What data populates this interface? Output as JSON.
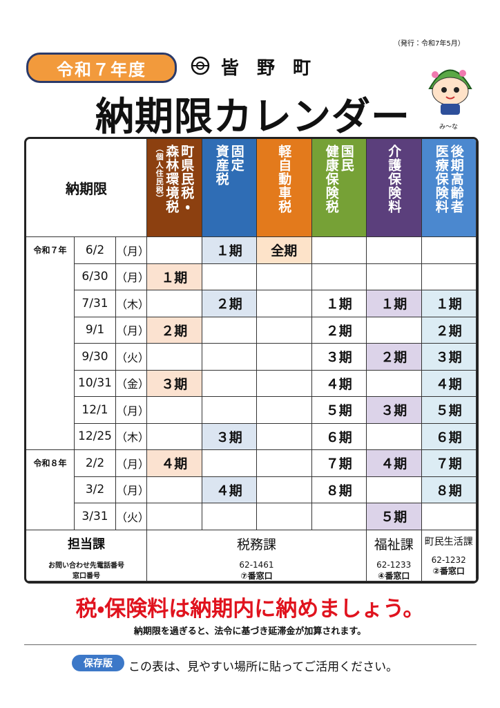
{
  "issued": "（発行：令和7年5月）",
  "badge": "令和７年度",
  "town": "皆　野　町",
  "title": "納期限カレンダー",
  "mascot_name": "み～な",
  "table": {
    "corner": "納期限",
    "columns": [
      {
        "lines": [
          "町県民税・",
          "森林環境税"
        ],
        "note": "（個人住民税）",
        "color": "#8c4010",
        "fill": "#fbe2d0"
      },
      {
        "lines": [
          "固定",
          "資産税"
        ],
        "color": "#2f6db5",
        "fill": "#dbe5f1"
      },
      {
        "lines": [
          "軽自動車税"
        ],
        "color": "#e37a1c",
        "fill": "#fde3c9"
      },
      {
        "lines": [
          "国民",
          "健康保険税"
        ],
        "color": "#76a136",
        "fill": "#ffffff"
      },
      {
        "lines": [
          "介護保険料"
        ],
        "color": "#5b3f7c",
        "fill": "#dcd3e9"
      },
      {
        "lines": [
          "後期高齢者",
          "医療保険料"
        ],
        "color": "#4b88cf",
        "fill": "#dcecf4"
      }
    ],
    "rows": [
      {
        "era": "令和７年",
        "date": "6/2",
        "day": "（月）",
        "cells": [
          null,
          "１期",
          "全期",
          null,
          null,
          null
        ]
      },
      {
        "date": "6/30",
        "day": "（月）",
        "cells": [
          "１期",
          null,
          null,
          null,
          null,
          null
        ]
      },
      {
        "date": "7/31",
        "day": "（木）",
        "cells": [
          null,
          "２期",
          null,
          "１期",
          "１期",
          "１期"
        ]
      },
      {
        "date": "9/1",
        "day": "（月）",
        "cells": [
          "２期",
          null,
          null,
          "２期",
          null,
          "２期"
        ]
      },
      {
        "date": "9/30",
        "day": "（火）",
        "cells": [
          null,
          null,
          null,
          "３期",
          "２期",
          "３期"
        ]
      },
      {
        "date": "10/31",
        "day": "（金）",
        "cells": [
          "３期",
          null,
          null,
          "４期",
          null,
          "４期"
        ]
      },
      {
        "date": "12/1",
        "day": "（月）",
        "cells": [
          null,
          null,
          null,
          "５期",
          "３期",
          "５期"
        ]
      },
      {
        "date": "12/25",
        "day": "（木）",
        "cells": [
          null,
          "３期",
          null,
          "６期",
          null,
          "６期"
        ]
      },
      {
        "era": "令和８年",
        "date": "2/2",
        "day": "（月）",
        "cells": [
          "４期",
          null,
          null,
          "７期",
          "４期",
          "７期"
        ]
      },
      {
        "date": "3/2",
        "day": "（月）",
        "cells": [
          null,
          "４期",
          null,
          "８期",
          null,
          "８期"
        ]
      },
      {
        "date": "3/31",
        "day": "（火）",
        "cells": [
          null,
          null,
          null,
          null,
          "５期",
          null
        ]
      }
    ],
    "footer": {
      "label": "担当課",
      "sub1": "お問い合わせ先電話番号",
      "sub2": "窓口番号",
      "departments": [
        {
          "name": "税務課",
          "phone": "62-1461",
          "window": "⑦番窓口"
        },
        {
          "name": "福祉課",
          "phone": "62-1233",
          "window": "④番窓口"
        },
        {
          "name": "町民生活課",
          "phone": "62-1232",
          "window": "②番窓口"
        }
      ]
    }
  },
  "slogan": "税・保険料は納期内に納めましょう。",
  "notice": "納期限を過ぎると、法令に基づき延滞金が加算されます。",
  "tag": "保存版",
  "footer_note": "この表は、見やすい場所に貼ってご活用ください。"
}
